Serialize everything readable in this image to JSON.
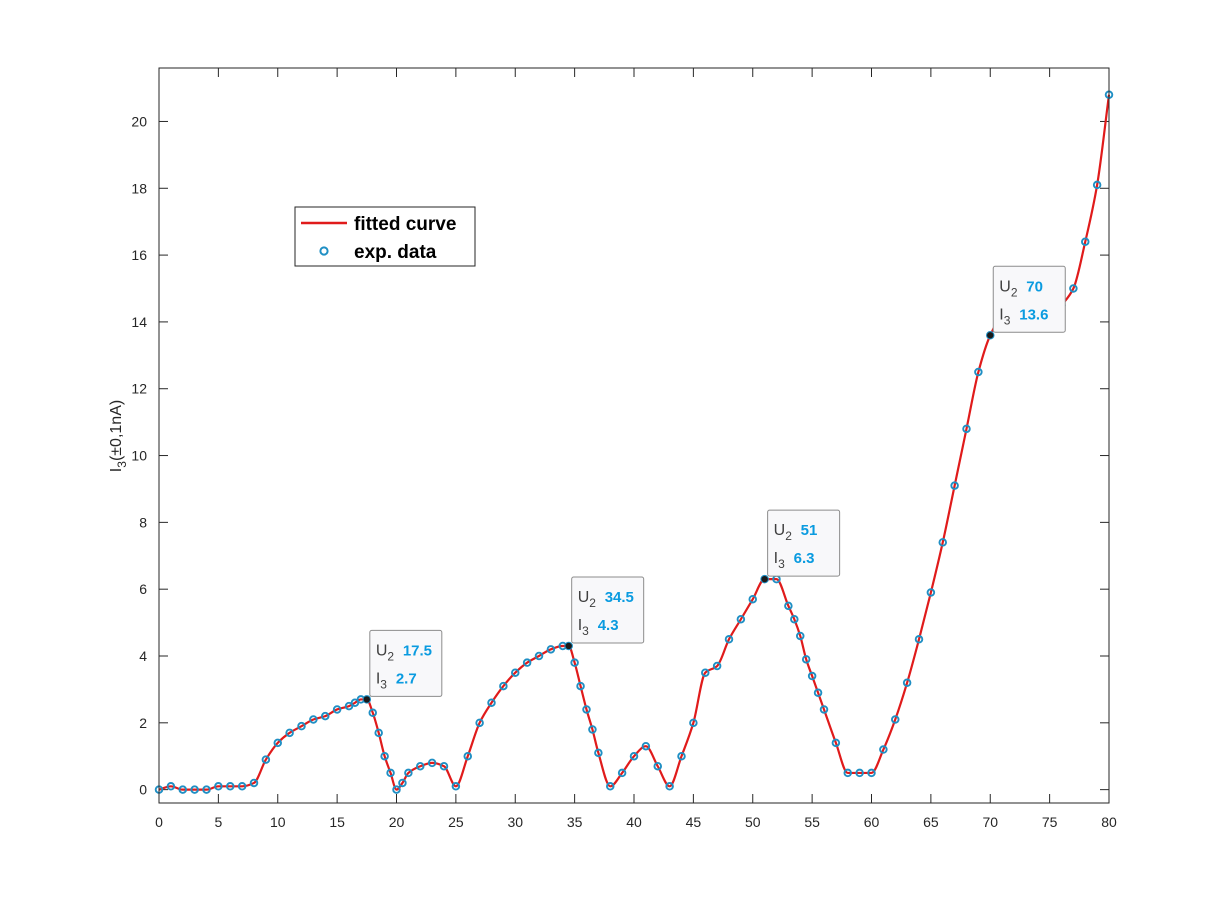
{
  "chart_data": {
    "type": "line",
    "title": "",
    "xlabel": "",
    "ylabel": {
      "main": "I",
      "sub": "3",
      "rest": "(±0,1nA)"
    },
    "xlim": [
      0,
      80
    ],
    "ylim": [
      -0.4,
      21.6
    ],
    "xticks": [
      0,
      5,
      10,
      15,
      20,
      25,
      30,
      35,
      40,
      45,
      50,
      55,
      60,
      65,
      70,
      75,
      80
    ],
    "yticks": [
      0,
      2,
      4,
      6,
      8,
      10,
      12,
      14,
      16,
      18,
      20
    ],
    "grid": false,
    "legend": {
      "placement": "upper-left",
      "entries": [
        {
          "label": "fitted curve",
          "style": "line",
          "color": "#e01b1b"
        },
        {
          "label": "exp. data",
          "style": "marker",
          "color": "#1f8fc4"
        }
      ]
    },
    "series": [
      {
        "name": "exp. data",
        "style": "marker",
        "color": "#1f8fc4",
        "x": [
          0,
          1,
          2,
          3,
          4,
          5,
          6,
          7,
          8,
          9,
          10,
          11,
          12,
          13,
          14,
          15,
          16,
          16.5,
          17,
          17.5,
          18,
          18.5,
          19,
          19.5,
          20,
          20.5,
          21,
          22,
          23,
          24,
          25,
          26,
          27,
          28,
          29,
          30,
          31,
          32,
          33,
          34,
          34.5,
          35,
          35.5,
          36,
          36.5,
          37,
          38,
          39,
          40,
          41,
          42,
          43,
          44,
          45,
          46,
          47,
          48,
          49,
          50,
          51,
          52,
          53,
          53.5,
          54,
          54.5,
          55,
          55.5,
          56,
          57,
          58,
          59,
          60,
          61,
          62,
          63,
          64,
          65,
          66,
          67,
          68,
          69,
          70,
          71,
          72,
          73,
          74,
          74.5,
          75,
          75.5,
          76,
          77,
          78,
          79,
          80
        ],
        "y": [
          0,
          0.1,
          0,
          0,
          0,
          0.1,
          0.1,
          0.1,
          0.2,
          0.9,
          1.4,
          1.7,
          1.9,
          2.1,
          2.2,
          2.4,
          2.5,
          2.6,
          2.7,
          2.7,
          2.3,
          1.7,
          1.0,
          0.5,
          0,
          0.2,
          0.5,
          0.7,
          0.8,
          0.7,
          0.1,
          1.0,
          2.0,
          2.6,
          3.1,
          3.5,
          3.8,
          4.0,
          4.2,
          4.3,
          4.3,
          3.8,
          3.1,
          2.4,
          1.8,
          1.1,
          0.1,
          0.5,
          1.0,
          1.3,
          0.7,
          0.1,
          1.0,
          2.0,
          3.5,
          3.7,
          4.5,
          5.1,
          5.7,
          6.3,
          6.3,
          5.5,
          5.1,
          4.6,
          3.9,
          3.4,
          2.9,
          2.4,
          1.4,
          0.5,
          0.5,
          0.5,
          1.2,
          2.1,
          3.2,
          4.5,
          5.9,
          7.4,
          9.1,
          10.8,
          12.5,
          13.6,
          14.2,
          14.5,
          14.4,
          14.3,
          14.1,
          14.0,
          14.3,
          14.5,
          15.0,
          16.4,
          18.1,
          20.8
        ]
      },
      {
        "name": "fitted curve",
        "style": "line",
        "color": "#e01b1b"
      }
    ],
    "datatips": [
      {
        "x": 17.5,
        "y": 2.7,
        "x_key": "U",
        "x_sub": "2",
        "x_val": "17.5",
        "y_key": "I",
        "y_sub": "3",
        "y_val": "2.7"
      },
      {
        "x": 34.5,
        "y": 4.3,
        "x_key": "U",
        "x_sub": "2",
        "x_val": "34.5",
        "y_key": "I",
        "y_sub": "3",
        "y_val": "4.3"
      },
      {
        "x": 51,
        "y": 6.3,
        "x_key": "U",
        "x_sub": "2",
        "x_val": "51",
        "y_key": "I",
        "y_sub": "3",
        "y_val": "6.3"
      },
      {
        "x": 70,
        "y": 13.6,
        "x_key": "U",
        "x_sub": "2",
        "x_val": "70",
        "y_key": "I",
        "y_sub": "3",
        "y_val": "13.6"
      }
    ]
  }
}
